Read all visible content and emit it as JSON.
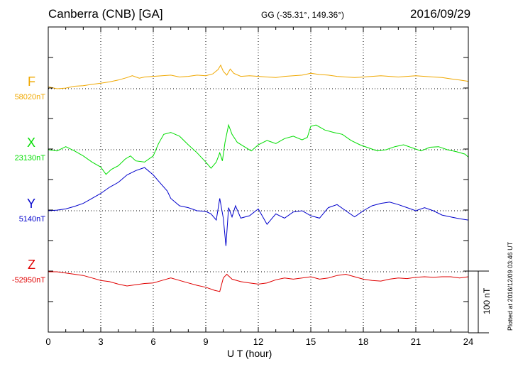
{
  "header": {
    "station": "Canberra (CNB)  [GA]",
    "coordinates": "GG (-35.31°, 149.36°)",
    "date": "2016/09/29"
  },
  "footer": {
    "plotted_note": "Plotted at 2016/12/09 03:46 UT",
    "scale_label": "100 nT"
  },
  "colors": {
    "F": "#f0a800",
    "X": "#00dd00",
    "Y": "#0000cc",
    "Z": "#e00000"
  },
  "chart_data": {
    "type": "line",
    "xlabel": "U T (hour)",
    "xlim": [
      0,
      24
    ],
    "xticks": [
      0,
      3,
      6,
      9,
      12,
      15,
      18,
      21,
      24
    ],
    "scale_bar_nT": 100,
    "series": [
      {
        "name": "F",
        "baseline_label": "58020nT",
        "baseline": 58020,
        "x": [
          0,
          0.5,
          1,
          1.5,
          2,
          2.5,
          3,
          3.5,
          4,
          4.5,
          4.8,
          5.2,
          5.5,
          6,
          6.5,
          7,
          7.5,
          8,
          8.5,
          9,
          9.4,
          9.7,
          9.85,
          10,
          10.2,
          10.4,
          10.6,
          11,
          11.5,
          12,
          12.5,
          13,
          13.5,
          14,
          14.5,
          15,
          15.5,
          16,
          16.5,
          17,
          17.5,
          18,
          18.5,
          19,
          19.5,
          20,
          20.5,
          21,
          21.5,
          22,
          22.5,
          23,
          23.5,
          24
        ],
        "y": [
          58023,
          58020,
          58021,
          58024,
          58025,
          58027,
          58029,
          58031,
          58034,
          58038,
          58041,
          58037,
          58039,
          58040,
          58041,
          58042,
          58039,
          58040,
          58042,
          58041,
          58044,
          58051,
          58058,
          58048,
          58042,
          58052,
          58045,
          58040,
          58041,
          58040,
          58039,
          58038,
          58040,
          58041,
          58042,
          58045,
          58043,
          58042,
          58040,
          58039,
          58038,
          58039,
          58040,
          58041,
          58040,
          58039,
          58040,
          58041,
          58040,
          58039,
          58038,
          58036,
          58034,
          58032
        ]
      },
      {
        "name": "X",
        "baseline_label": "23130nT",
        "baseline": 23130,
        "x": [
          0,
          0.5,
          1,
          1.5,
          2,
          2.5,
          3,
          3.3,
          3.6,
          4,
          4.4,
          4.7,
          5,
          5.5,
          6,
          6.3,
          6.6,
          7,
          7.5,
          8,
          8.5,
          9,
          9.3,
          9.6,
          9.8,
          9.95,
          10.1,
          10.3,
          10.5,
          10.8,
          11.2,
          11.6,
          12,
          12.5,
          13,
          13.5,
          14,
          14.5,
          14.8,
          15,
          15.3,
          15.8,
          16.3,
          16.8,
          17.3,
          17.8,
          18.3,
          18.8,
          19.3,
          19.8,
          20.3,
          20.8,
          21.3,
          21.8,
          22.3,
          22.8,
          23.3,
          23.8,
          24
        ],
        "y": [
          23130,
          23128,
          23135,
          23128,
          23120,
          23110,
          23102,
          23090,
          23098,
          23104,
          23115,
          23120,
          23112,
          23110,
          23120,
          23140,
          23155,
          23158,
          23152,
          23138,
          23125,
          23110,
          23100,
          23110,
          23125,
          23112,
          23142,
          23170,
          23155,
          23142,
          23135,
          23128,
          23138,
          23145,
          23140,
          23148,
          23152,
          23146,
          23150,
          23168,
          23170,
          23162,
          23158,
          23155,
          23145,
          23138,
          23133,
          23128,
          23130,
          23135,
          23138,
          23133,
          23128,
          23134,
          23135,
          23130,
          23127,
          23123,
          23118
        ]
      },
      {
        "name": "Y",
        "baseline_label": "5140nT",
        "baseline": 5140,
        "x": [
          0,
          0.5,
          1,
          1.5,
          2,
          2.5,
          3,
          3.5,
          4,
          4.5,
          5,
          5.5,
          6,
          6.3,
          6.8,
          7,
          7.5,
          8,
          8.5,
          9,
          9.3,
          9.6,
          9.8,
          10,
          10.15,
          10.3,
          10.5,
          10.7,
          11,
          11.5,
          12,
          12.5,
          13,
          13.5,
          14,
          14.5,
          15,
          15.5,
          16,
          16.5,
          17,
          17.5,
          18,
          18.5,
          19,
          19.5,
          20,
          20.5,
          21,
          21.5,
          22,
          22.5,
          23,
          23.5,
          24
        ],
        "y": [
          5140,
          5141,
          5143,
          5147,
          5152,
          5160,
          5168,
          5178,
          5186,
          5198,
          5205,
          5210,
          5198,
          5188,
          5172,
          5160,
          5148,
          5145,
          5140,
          5139,
          5135,
          5125,
          5160,
          5128,
          5083,
          5145,
          5130,
          5148,
          5128,
          5132,
          5143,
          5118,
          5135,
          5128,
          5138,
          5140,
          5132,
          5128,
          5145,
          5150,
          5140,
          5130,
          5140,
          5148,
          5152,
          5154,
          5150,
          5145,
          5140,
          5145,
          5140,
          5133,
          5130,
          5127,
          5125
        ]
      },
      {
        "name": "Z",
        "baseline_label": "-52950nT",
        "baseline": -52950,
        "x": [
          0,
          0.5,
          1,
          1.5,
          2,
          2.5,
          3,
          3.5,
          4,
          4.5,
          5,
          5.5,
          6,
          6.5,
          7,
          7.5,
          8,
          8.5,
          9,
          9.5,
          9.8,
          10,
          10.2,
          10.5,
          11,
          11.5,
          12,
          12.5,
          13,
          13.5,
          14,
          14.5,
          15,
          15.5,
          16,
          16.5,
          17,
          17.5,
          18,
          18.5,
          19,
          19.5,
          20,
          20.5,
          21,
          21.5,
          22,
          22.5,
          23,
          23.5,
          24
        ],
        "y": [
          -52950,
          -52950,
          -52952,
          -52954,
          -52956,
          -52960,
          -52964,
          -52966,
          -52970,
          -52973,
          -52971,
          -52969,
          -52968,
          -52964,
          -52960,
          -52964,
          -52968,
          -52972,
          -52975,
          -52980,
          -52982,
          -52960,
          -52954,
          -52962,
          -52966,
          -52968,
          -52970,
          -52968,
          -52963,
          -52960,
          -52962,
          -52960,
          -52958,
          -52962,
          -52960,
          -52956,
          -52954,
          -52958,
          -52962,
          -52964,
          -52965,
          -52962,
          -52960,
          -52961,
          -52959,
          -52958,
          -52959,
          -52958,
          -52958,
          -52960,
          -52958
        ]
      }
    ]
  }
}
